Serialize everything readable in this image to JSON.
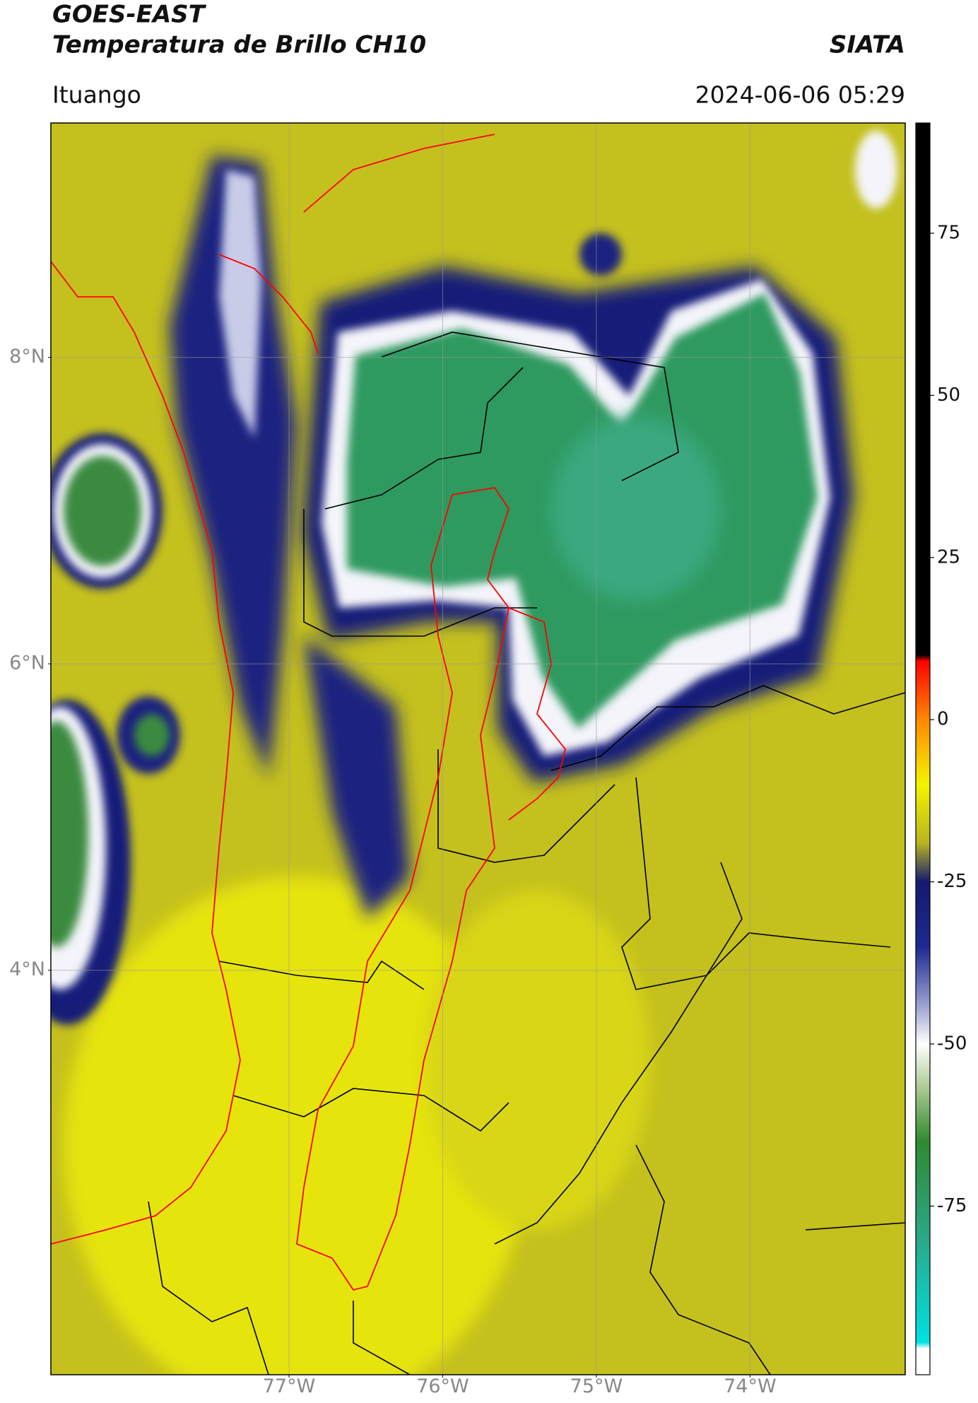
{
  "chart_data": {
    "type": "map",
    "title": "GOES-EAST",
    "subtitle": "Temperatura de Brillo CH10",
    "source": "SIATA",
    "location": "Ituango",
    "datetime": "2024-06-06 05:29",
    "xlim": [
      -78.55,
      -72.99
    ],
    "ylim": [
      1.36,
      9.53
    ],
    "xticks": [
      {
        "value": -77,
        "label": "77°W"
      },
      {
        "value": -76,
        "label": "76°W"
      },
      {
        "value": -75,
        "label": "75°W"
      },
      {
        "value": -74,
        "label": "74°W"
      }
    ],
    "yticks": [
      {
        "value": 8,
        "label": "8°N"
      },
      {
        "value": 6,
        "label": "6°N"
      },
      {
        "value": 4,
        "label": "4°N"
      }
    ],
    "grid": true,
    "colorbar": {
      "clim": [
        -101,
        92
      ],
      "ticks": [
        75,
        50,
        25,
        0,
        -25,
        -50,
        -75
      ],
      "colormap": [
        {
          "value": 92,
          "color": "#000000"
        },
        {
          "value": 10,
          "color": "#000000"
        },
        {
          "value": 9,
          "color": "#ff0000"
        },
        {
          "value": 0,
          "color": "#ff8800"
        },
        {
          "value": -10,
          "color": "#f4f400"
        },
        {
          "value": -19,
          "color": "#b8b420"
        },
        {
          "value": -25,
          "color": "#151a70"
        },
        {
          "value": -35,
          "color": "#1c2a90"
        },
        {
          "value": -44,
          "color": "#9aa0d0"
        },
        {
          "value": -50,
          "color": "#ffffff"
        },
        {
          "value": -57,
          "color": "#a8c890"
        },
        {
          "value": -65,
          "color": "#2e8a30"
        },
        {
          "value": -80,
          "color": "#2aa888"
        },
        {
          "value": -96,
          "color": "#00e0e0"
        },
        {
          "value": -97,
          "color": "#ffffff"
        },
        {
          "value": -101,
          "color": "#ffffff"
        }
      ]
    }
  }
}
